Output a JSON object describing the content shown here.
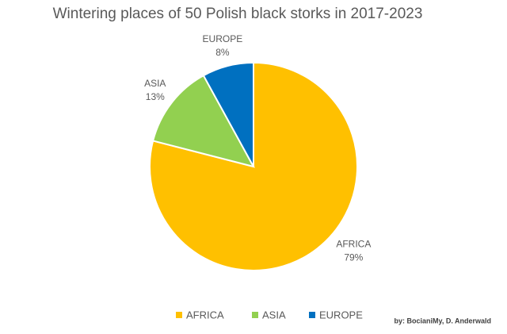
{
  "chart_data": {
    "type": "pie",
    "title": "Wintering places of 50 Polish black storks in 2017-2023",
    "categories": [
      "AFRICA",
      "ASIA",
      "EUROPE"
    ],
    "values": [
      79,
      13,
      8
    ],
    "value_labels": [
      "79%",
      "13%",
      "8%"
    ],
    "colors": [
      "#FFC000",
      "#92D050",
      "#0070C0"
    ],
    "legend": "bottom",
    "source": "by: BocianiMy, D. Anderwald"
  }
}
